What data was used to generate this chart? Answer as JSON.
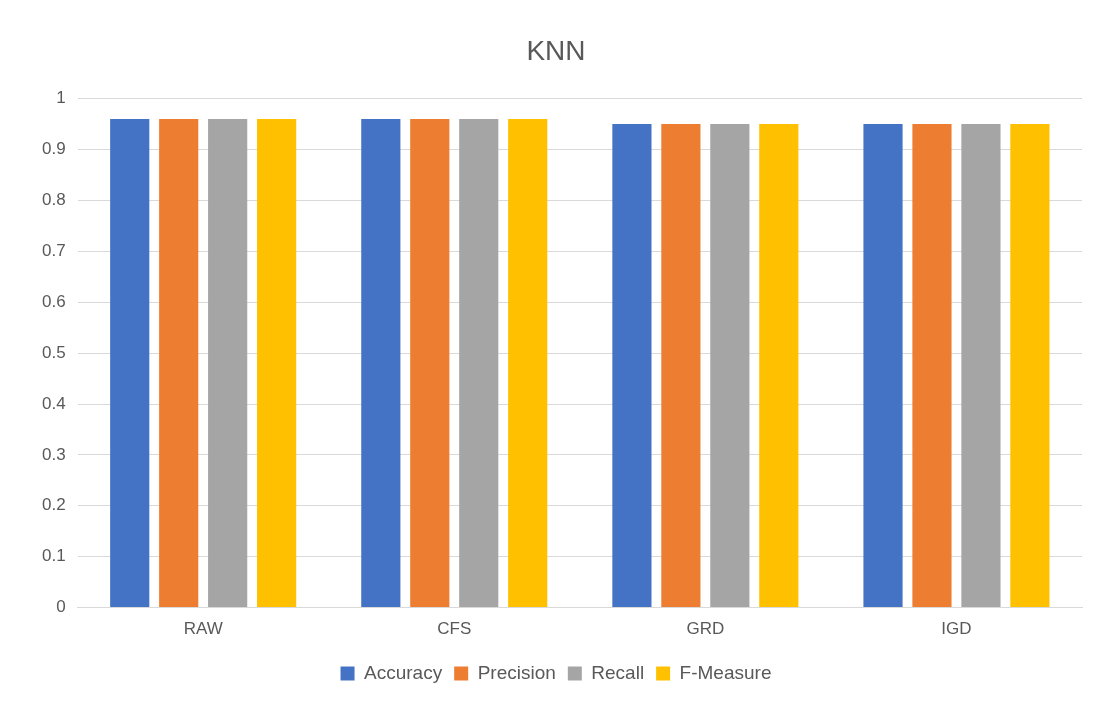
{
  "chart_data": {
    "type": "bar",
    "title": "KNN",
    "categories": [
      "RAW",
      "CFS",
      "GRD",
      "IGD"
    ],
    "series": [
      {
        "name": "Accuracy",
        "color": "#4472c4",
        "values": [
          0.96,
          0.96,
          0.95,
          0.95
        ]
      },
      {
        "name": "Precision",
        "color": "#ed7d31",
        "values": [
          0.96,
          0.96,
          0.95,
          0.95
        ]
      },
      {
        "name": "Recall",
        "color": "#a5a5a5",
        "values": [
          0.96,
          0.96,
          0.95,
          0.95
        ]
      },
      {
        "name": "F-Measure",
        "color": "#ffc000",
        "values": [
          0.96,
          0.96,
          0.95,
          0.95
        ]
      }
    ],
    "ylim": [
      0,
      1
    ],
    "yticks": [
      0,
      0.1,
      0.2,
      0.3,
      0.4,
      0.5,
      0.6,
      0.7,
      0.8,
      0.9,
      1
    ],
    "grid": "y",
    "legend": "bottom"
  }
}
